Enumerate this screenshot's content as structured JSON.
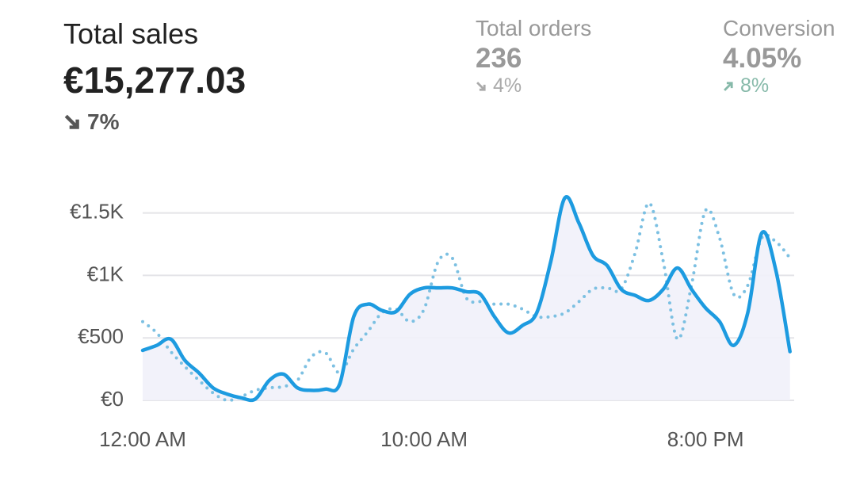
{
  "metrics": [
    {
      "label": "Total sales",
      "value": "€15,277.03",
      "change": "7%",
      "direction": "down"
    },
    {
      "label": "Total orders",
      "value": "236",
      "change": "4%",
      "direction": "down"
    },
    {
      "label": "Conversion",
      "value": "4.05%",
      "change": "8%",
      "direction": "up"
    }
  ],
  "chart_data": {
    "type": "line",
    "x": [
      0,
      0.5,
      1,
      1.5,
      2,
      2.5,
      3,
      3.5,
      4,
      4.5,
      5,
      5.5,
      6,
      6.5,
      7,
      7.5,
      8,
      8.5,
      9,
      9.5,
      10,
      10.5,
      11,
      11.5,
      12,
      12.5,
      13,
      13.5,
      14,
      14.5,
      15,
      15.5,
      16,
      16.5,
      17,
      17.5,
      18,
      18.5,
      19,
      19.5,
      20,
      20.5,
      21,
      21.5,
      22,
      22.5,
      23
    ],
    "series": [
      {
        "color": "#1d9be0",
        "style": "solid",
        "area": true,
        "values": [
          400,
          440,
          490,
          320,
          220,
          100,
          50,
          20,
          10,
          160,
          210,
          100,
          80,
          90,
          130,
          670,
          770,
          720,
          710,
          850,
          900,
          900,
          900,
          870,
          850,
          670,
          540,
          600,
          700,
          1110,
          1620,
          1420,
          1160,
          1080,
          890,
          840,
          800,
          890,
          1060,
          890,
          740,
          630,
          440,
          700,
          1340,
          1040,
          390
        ]
      },
      {
        "color": "#7cc0e2",
        "style": "dotted",
        "area": false,
        "values": [
          630,
          540,
          390,
          270,
          160,
          60,
          0,
          30,
          80,
          100,
          110,
          160,
          350,
          380,
          220,
          410,
          550,
          700,
          730,
          630,
          730,
          1110,
          1140,
          820,
          790,
          770,
          770,
          730,
          670,
          670,
          700,
          790,
          890,
          900,
          890,
          1180,
          1580,
          1110,
          490,
          920,
          1520,
          1300,
          850,
          920,
          1300,
          1270,
          1140
        ]
      }
    ],
    "xlim": [
      0,
      23.15
    ],
    "ylim": [
      0,
      1650
    ],
    "xticks": [
      {
        "value": 0,
        "label": "12:00 AM"
      },
      {
        "value": 10,
        "label": "10:00 AM"
      },
      {
        "value": 20,
        "label": "8:00 PM"
      }
    ],
    "yticks": [
      {
        "value": 0,
        "label": "€0"
      },
      {
        "value": 500,
        "label": "€500"
      },
      {
        "value": 1000,
        "label": "€1K"
      },
      {
        "value": 1500,
        "label": "€1.5K"
      }
    ],
    "grid": true
  }
}
